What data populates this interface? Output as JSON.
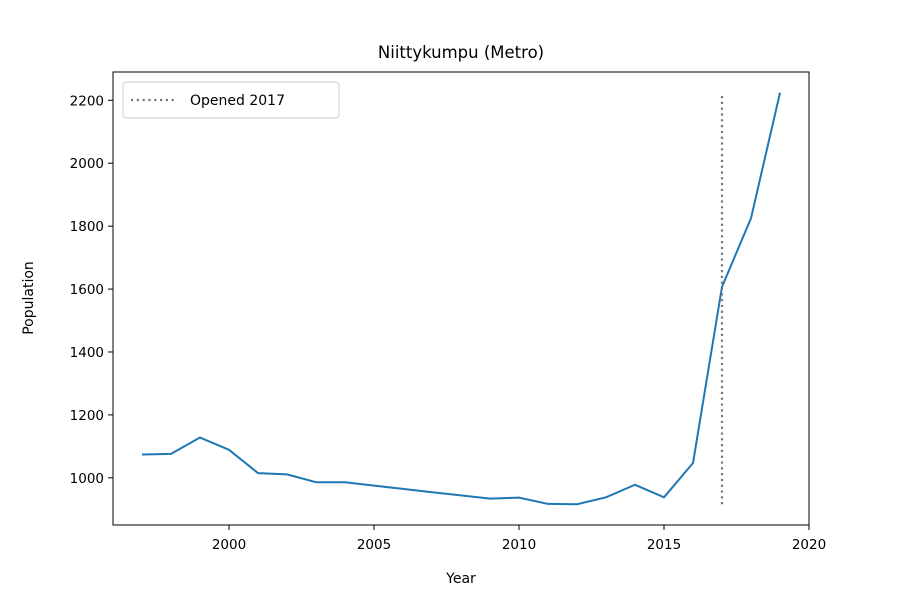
{
  "chart_data": {
    "type": "line",
    "title": "Niittykumpu (Metro)",
    "xlabel": "Year",
    "ylabel": "Population",
    "xlim": [
      1996,
      2020
    ],
    "ylim": [
      850,
      2290
    ],
    "x_ticks": [
      "2000",
      "2005",
      "2010",
      "2015",
      "2020"
    ],
    "y_ticks": [
      "1000",
      "1200",
      "1400",
      "1600",
      "1800",
      "2000",
      "2200"
    ],
    "grid": false,
    "legend_position": "top-left",
    "series": [
      {
        "color": "#1f77b4",
        "x": [
          1997,
          1998,
          1999,
          2000,
          2001,
          2002,
          2003,
          2004,
          2005,
          2006,
          2007,
          2008,
          2009,
          2010,
          2011,
          2012,
          2013,
          2014,
          2015,
          2016,
          2017,
          2018,
          2019
        ],
        "values": [
          1074,
          1076,
          1128,
          1089,
          1015,
          1011,
          986,
          986,
          975,
          965,
          954,
          944,
          934,
          937,
          917,
          916,
          938,
          978,
          938,
          1047,
          1607,
          1825,
          2224
        ]
      }
    ],
    "annotations": [
      {
        "type": "vline",
        "x": 2017,
        "y_range": [
          916,
          2217
        ],
        "label": "Opened 2017",
        "color": "#777777",
        "style": "dotted"
      }
    ]
  }
}
